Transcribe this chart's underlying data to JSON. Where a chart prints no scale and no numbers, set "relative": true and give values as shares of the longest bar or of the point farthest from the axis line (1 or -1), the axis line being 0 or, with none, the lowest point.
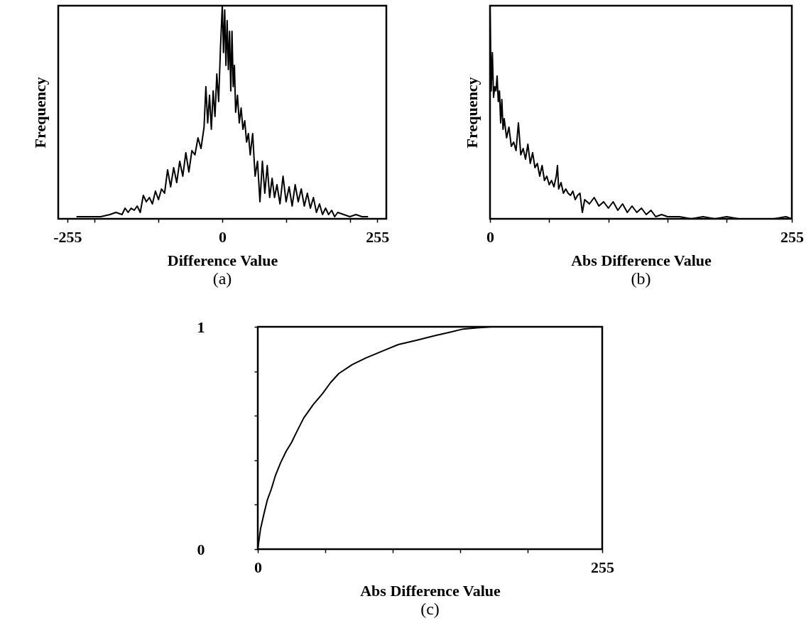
{
  "chart_data": [
    {
      "type": "line",
      "xlabel": "Difference Value",
      "ylabel": "Frequency",
      "annotations": [
        "(a)"
      ],
      "relative": true,
      "xlim": [
        -270,
        270
      ],
      "xticks": [
        -255,
        {
          "value": -210,
          "label": null
        },
        {
          "value": -105,
          "label": null
        },
        0,
        {
          "value": 105,
          "label": null
        },
        {
          "value": 210,
          "label": null
        },
        255
      ],
      "x": [
        -240,
        -215,
        -200,
        -185,
        -175,
        -165,
        -160,
        -155,
        -150,
        -145,
        -140,
        -135,
        -130,
        -125,
        -120,
        -115,
        -110,
        -105,
        -100,
        -95,
        -90,
        -85,
        -80,
        -75,
        -70,
        -65,
        -60,
        -55,
        -50,
        -45,
        -40,
        -35,
        -30,
        -27,
        -24,
        -21,
        -18,
        -15,
        -12,
        -9,
        -6,
        -3,
        0,
        2,
        4,
        6,
        8,
        10,
        12,
        14,
        16,
        18,
        20,
        22,
        25,
        28,
        31,
        34,
        37,
        40,
        43,
        46,
        50,
        54,
        58,
        62,
        66,
        70,
        74,
        78,
        82,
        86,
        90,
        95,
        100,
        105,
        110,
        115,
        120,
        125,
        130,
        135,
        140,
        145,
        150,
        155,
        160,
        165,
        170,
        175,
        180,
        185,
        190,
        200,
        210,
        220,
        230,
        240
      ],
      "series": [
        {
          "color": "#000000",
          "values": [
            0.01,
            0.01,
            0.01,
            0.02,
            0.03,
            0.02,
            0.05,
            0.03,
            0.05,
            0.04,
            0.06,
            0.03,
            0.11,
            0.08,
            0.1,
            0.07,
            0.13,
            0.09,
            0.14,
            0.12,
            0.23,
            0.15,
            0.24,
            0.17,
            0.27,
            0.2,
            0.31,
            0.22,
            0.32,
            0.3,
            0.38,
            0.33,
            0.43,
            0.62,
            0.45,
            0.58,
            0.42,
            0.6,
            0.48,
            0.68,
            0.55,
            0.8,
            1.0,
            0.78,
            0.98,
            0.72,
            0.93,
            0.7,
            0.88,
            0.6,
            0.88,
            0.62,
            0.72,
            0.5,
            0.58,
            0.45,
            0.52,
            0.42,
            0.46,
            0.36,
            0.4,
            0.3,
            0.4,
            0.2,
            0.27,
            0.08,
            0.27,
            0.12,
            0.25,
            0.1,
            0.19,
            0.1,
            0.16,
            0.07,
            0.2,
            0.08,
            0.15,
            0.06,
            0.16,
            0.08,
            0.14,
            0.06,
            0.12,
            0.05,
            0.1,
            0.03,
            0.07,
            0.02,
            0.05,
            0.02,
            0.04,
            0.01,
            0.03,
            0.02,
            0.01,
            0.02,
            0.01,
            0.01
          ]
        }
      ]
    },
    {
      "type": "line",
      "xlabel": "Abs Difference Value",
      "ylabel": "Frequency",
      "annotations": [
        "(b)"
      ],
      "relative": true,
      "xlim": [
        0,
        255
      ],
      "xticks": [
        0,
        {
          "value": 50,
          "label": null
        },
        {
          "value": 100,
          "label": null
        },
        {
          "value": 150,
          "label": null
        },
        {
          "value": 200,
          "label": null
        },
        255
      ],
      "x": [
        0,
        1,
        2,
        3,
        4,
        5,
        6,
        7,
        8,
        9,
        10,
        11,
        12,
        14,
        16,
        18,
        20,
        22,
        24,
        26,
        28,
        30,
        32,
        34,
        36,
        38,
        40,
        42,
        44,
        46,
        48,
        50,
        52,
        54,
        56,
        57,
        58,
        60,
        62,
        64,
        66,
        68,
        70,
        72,
        74,
        76,
        78,
        80,
        84,
        88,
        92,
        96,
        100,
        104,
        108,
        112,
        116,
        120,
        124,
        128,
        132,
        136,
        140,
        145,
        150,
        160,
        170,
        180,
        190,
        200,
        210,
        220,
        230,
        240,
        250,
        255
      ],
      "series": [
        {
          "color": "#000000",
          "values": [
            1.0,
            0.6,
            0.78,
            0.57,
            0.62,
            0.6,
            0.67,
            0.55,
            0.6,
            0.45,
            0.56,
            0.42,
            0.47,
            0.38,
            0.43,
            0.34,
            0.36,
            0.32,
            0.45,
            0.3,
            0.33,
            0.28,
            0.35,
            0.26,
            0.31,
            0.24,
            0.26,
            0.2,
            0.25,
            0.18,
            0.2,
            0.16,
            0.18,
            0.15,
            0.2,
            0.25,
            0.14,
            0.17,
            0.12,
            0.14,
            0.12,
            0.11,
            0.13,
            0.09,
            0.11,
            0.12,
            0.03,
            0.09,
            0.07,
            0.1,
            0.06,
            0.08,
            0.05,
            0.08,
            0.04,
            0.07,
            0.03,
            0.06,
            0.03,
            0.05,
            0.02,
            0.04,
            0.01,
            0.02,
            0.01,
            0.01,
            0,
            0.01,
            0,
            0.01,
            0,
            0,
            0,
            0,
            0.01,
            0
          ]
        }
      ]
    },
    {
      "type": "line",
      "xlabel": "Abs Difference Value",
      "annotations": [
        "(c)"
      ],
      "xlim": [
        0,
        255
      ],
      "xticks": [
        0,
        {
          "value": 50,
          "label": null
        },
        {
          "value": 100,
          "label": null
        },
        {
          "value": 150,
          "label": null
        },
        {
          "value": 200,
          "label": null
        },
        255
      ],
      "ylim": [
        0,
        1
      ],
      "yticks": [
        0,
        {
          "value": 0.2,
          "label": null
        },
        {
          "value": 0.4,
          "label": null
        },
        {
          "value": 0.6,
          "label": null
        },
        {
          "value": 0.8,
          "label": null
        },
        1
      ],
      "x": [
        0,
        2,
        4.6,
        7,
        10,
        13,
        17,
        21,
        25,
        29,
        34,
        41,
        48,
        54,
        60,
        70,
        80,
        92,
        104,
        118,
        131,
        142,
        152,
        162,
        173,
        180
      ],
      "series": [
        {
          "color": "#000000",
          "values": [
            0,
            0.09,
            0.16,
            0.22,
            0.27,
            0.33,
            0.39,
            0.44,
            0.48,
            0.53,
            0.59,
            0.65,
            0.7,
            0.75,
            0.79,
            0.83,
            0.86,
            0.89,
            0.92,
            0.94,
            0.96,
            0.975,
            0.99,
            0.995,
            1,
            1
          ]
        }
      ]
    }
  ]
}
